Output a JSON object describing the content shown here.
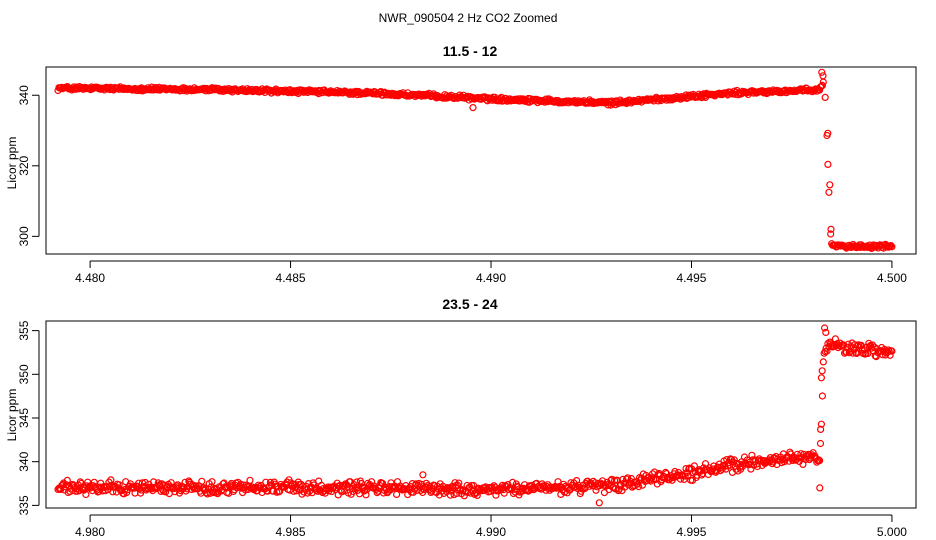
{
  "figure": {
    "title": "NWR_090504  2 Hz CO2 Zoomed",
    "point_color": "#ff0000"
  },
  "chart_data": [
    {
      "type": "scatter",
      "title": "11.5 - 12",
      "xlabel": "",
      "ylabel": "Licor ppm",
      "xlim": [
        4.4789,
        4.5006
      ],
      "ylim": [
        295,
        348
      ],
      "xticks": [
        4.48,
        4.485,
        4.49,
        4.495,
        4.5
      ],
      "xtick_labels": [
        "4.480",
        "4.485",
        "4.490",
        "4.495",
        "4.500"
      ],
      "yticks": [
        300,
        320,
        340
      ],
      "ytick_labels": [
        "300",
        "320",
        "340"
      ],
      "grid": false,
      "legend": "none",
      "trend": {
        "x": [
          4.4792,
          4.483,
          4.487,
          4.49,
          4.493,
          4.496,
          4.4982,
          4.4983,
          4.49835,
          4.49838,
          4.49842,
          4.49846,
          4.4985,
          4.499,
          4.5
        ],
        "y": [
          342,
          341.6,
          340.6,
          339.0,
          337.8,
          340.6,
          341.5,
          344,
          337,
          329,
          314.5,
          302,
          297.5,
          297.2,
          297.3
        ]
      },
      "spread": 0.7,
      "outliers": [
        {
          "x": 4.48955,
          "y": 336.5
        },
        {
          "x": 4.49825,
          "y": 346.5
        },
        {
          "x": 4.49828,
          "y": 345.5
        },
        {
          "x": 4.4984,
          "y": 329.2
        },
        {
          "x": 4.49845,
          "y": 314.6
        },
        {
          "x": 4.49848,
          "y": 302.0
        }
      ]
    },
    {
      "type": "scatter",
      "title": "23.5 - 24",
      "xlabel": "",
      "ylabel": "Licor ppm",
      "xlim": [
        4.9789,
        5.0006
      ],
      "ylim": [
        334.7,
        356.1
      ],
      "xticks": [
        4.98,
        4.985,
        4.99,
        4.995,
        5.0
      ],
      "xtick_labels": [
        "4.980",
        "4.985",
        "4.990",
        "4.995",
        "5.000"
      ],
      "yticks": [
        335,
        340,
        345,
        350,
        355
      ],
      "ytick_labels": [
        "335",
        "340",
        "345",
        "350",
        "355"
      ],
      "grid": false,
      "legend": "none",
      "trend": {
        "x": [
          4.9792,
          4.985,
          4.99,
          4.993,
          4.995,
          4.997,
          4.9982,
          4.99822,
          4.9983,
          4.9984,
          4.999,
          5.0
        ],
        "y": [
          337.0,
          337.1,
          336.8,
          337.2,
          338.7,
          340.3,
          340.5,
          342,
          352.8,
          353.4,
          353.0,
          352.5
        ]
      },
      "spread": 0.9,
      "outliers": [
        {
          "x": 4.9982,
          "y": 337.0
        },
        {
          "x": 4.99822,
          "y": 343.7
        },
        {
          "x": 4.99824,
          "y": 349.6
        },
        {
          "x": 4.99826,
          "y": 350.4
        },
        {
          "x": 4.99832,
          "y": 355.3
        },
        {
          "x": 4.99835,
          "y": 354.8
        },
        {
          "x": 4.9927,
          "y": 335.3
        },
        {
          "x": 4.9883,
          "y": 338.5
        }
      ]
    }
  ]
}
